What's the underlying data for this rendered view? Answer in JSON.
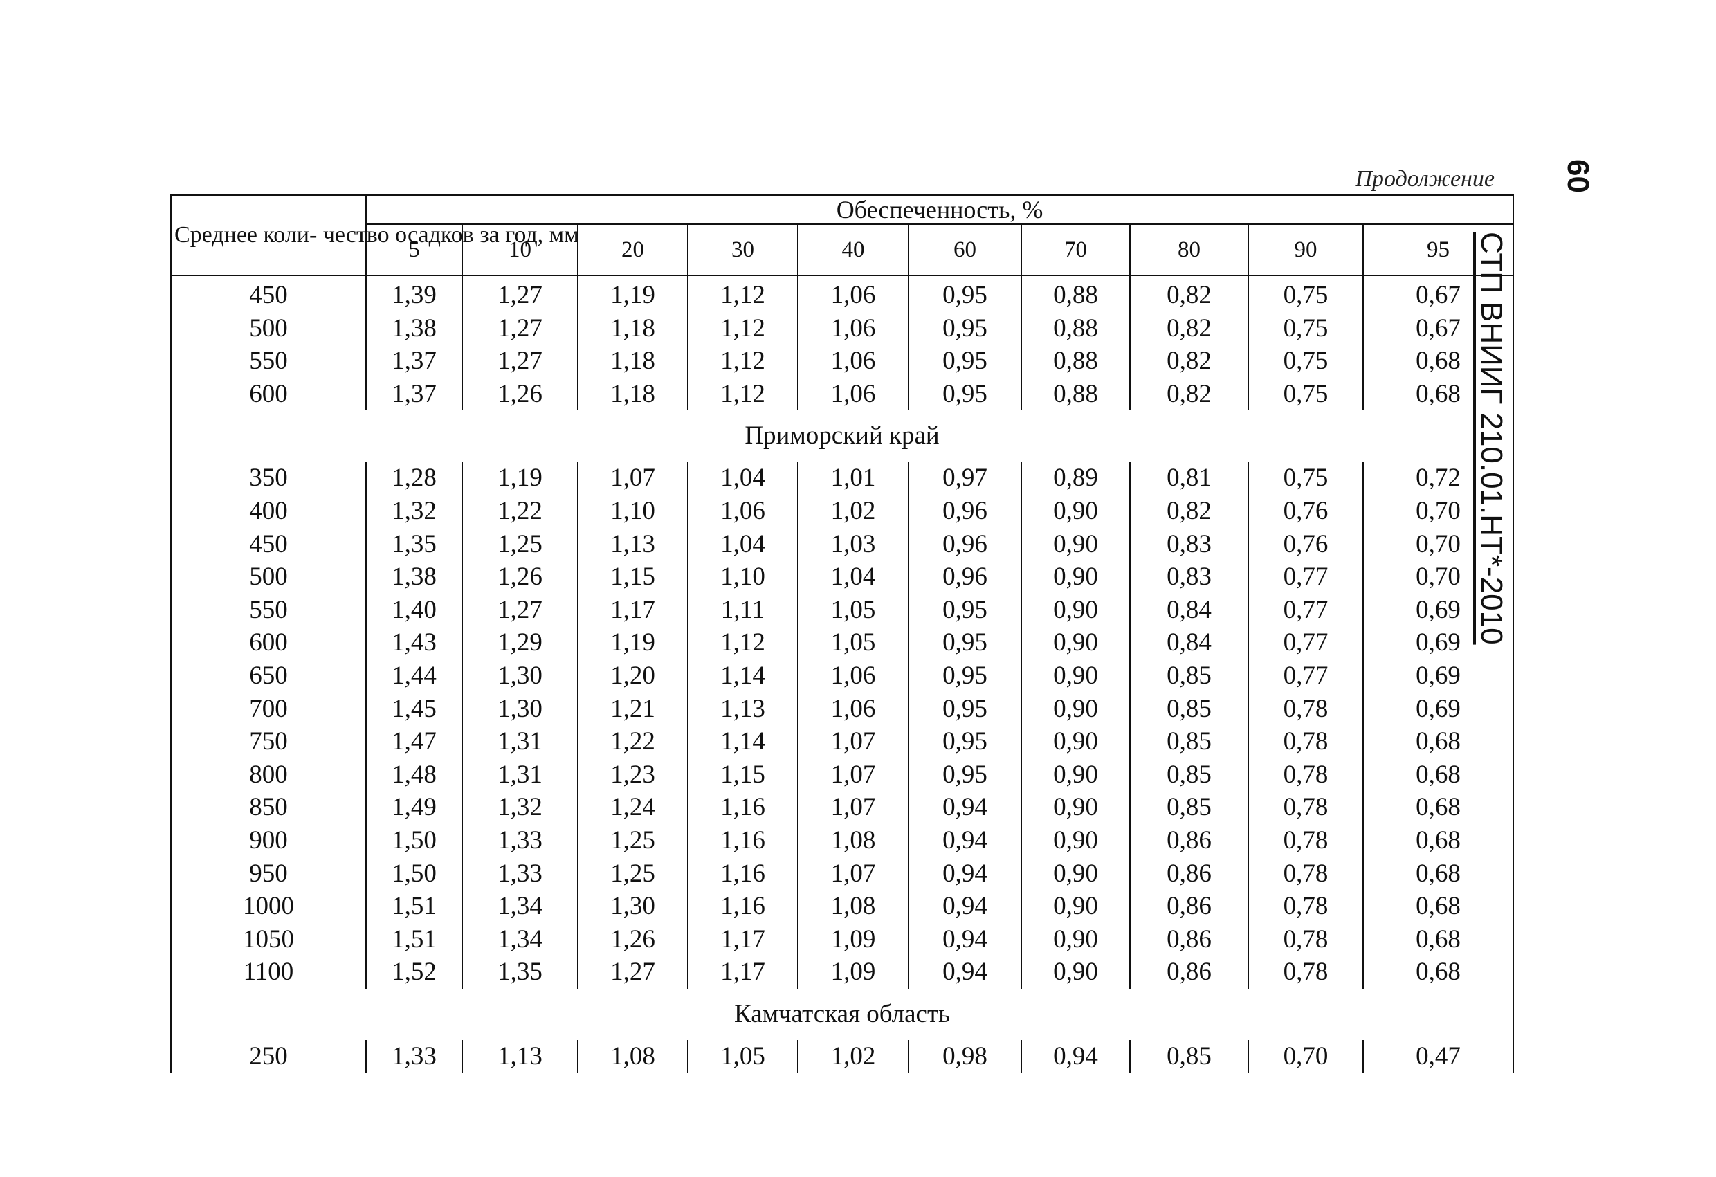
{
  "header": {
    "continuation": "Продолжение",
    "document_code": "СТП ВНИИГ 210.01.НТ*-2010",
    "page_number": "60"
  },
  "table": {
    "param_header": "Среднее коли- чество осадков за год, мм",
    "group_header": "Обеспеченность, %",
    "percent_columns": [
      "5",
      "10",
      "20",
      "30",
      "40",
      "60",
      "70",
      "80",
      "90",
      "95"
    ],
    "blocks": [
      {
        "section_title": "",
        "rows": [
          [
            "450",
            "1,39",
            "1,27",
            "1,19",
            "1,12",
            "1,06",
            "0,95",
            "0,88",
            "0,82",
            "0,75",
            "0,67"
          ],
          [
            "500",
            "1,38",
            "1,27",
            "1,18",
            "1,12",
            "1,06",
            "0,95",
            "0,88",
            "0,82",
            "0,75",
            "0,67"
          ],
          [
            "550",
            "1,37",
            "1,27",
            "1,18",
            "1,12",
            "1,06",
            "0,95",
            "0,88",
            "0,82",
            "0,75",
            "0,68"
          ],
          [
            "600",
            "1,37",
            "1,26",
            "1,18",
            "1,12",
            "1,06",
            "0,95",
            "0,88",
            "0,82",
            "0,75",
            "0,68"
          ]
        ]
      },
      {
        "section_title": "Приморский край",
        "rows": [
          [
            "350",
            "1,28",
            "1,19",
            "1,07",
            "1,04",
            "1,01",
            "0,97",
            "0,89",
            "0,81",
            "0,75",
            "0,72"
          ],
          [
            "400",
            "1,32",
            "1,22",
            "1,10",
            "1,06",
            "1,02",
            "0,96",
            "0,90",
            "0,82",
            "0,76",
            "0,70"
          ],
          [
            "450",
            "1,35",
            "1,25",
            "1,13",
            "1,04",
            "1,03",
            "0,96",
            "0,90",
            "0,83",
            "0,76",
            "0,70"
          ],
          [
            "500",
            "1,38",
            "1,26",
            "1,15",
            "1,10",
            "1,04",
            "0,96",
            "0,90",
            "0,83",
            "0,77",
            "0,70"
          ],
          [
            "550",
            "1,40",
            "1,27",
            "1,17",
            "1,11",
            "1,05",
            "0,95",
            "0,90",
            "0,84",
            "0,77",
            "0,69"
          ],
          [
            "600",
            "1,43",
            "1,29",
            "1,19",
            "1,12",
            "1,05",
            "0,95",
            "0,90",
            "0,84",
            "0,77",
            "0,69"
          ],
          [
            "650",
            "1,44",
            "1,30",
            "1,20",
            "1,14",
            "1,06",
            "0,95",
            "0,90",
            "0,85",
            "0,77",
            "0,69"
          ],
          [
            "700",
            "1,45",
            "1,30",
            "1,21",
            "1,13",
            "1,06",
            "0,95",
            "0,90",
            "0,85",
            "0,78",
            "0,69"
          ],
          [
            "750",
            "1,47",
            "1,31",
            "1,22",
            "1,14",
            "1,07",
            "0,95",
            "0,90",
            "0,85",
            "0,78",
            "0,68"
          ],
          [
            "800",
            "1,48",
            "1,31",
            "1,23",
            "1,15",
            "1,07",
            "0,95",
            "0,90",
            "0,85",
            "0,78",
            "0,68"
          ],
          [
            "850",
            "1,49",
            "1,32",
            "1,24",
            "1,16",
            "1,07",
            "0,94",
            "0,90",
            "0,85",
            "0,78",
            "0,68"
          ],
          [
            "900",
            "1,50",
            "1,33",
            "1,25",
            "1,16",
            "1,08",
            "0,94",
            "0,90",
            "0,86",
            "0,78",
            "0,68"
          ],
          [
            "950",
            "1,50",
            "1,33",
            "1,25",
            "1,16",
            "1,07",
            "0,94",
            "0,90",
            "0,86",
            "0,78",
            "0,68"
          ],
          [
            "1000",
            "1,51",
            "1,34",
            "1,30",
            "1,16",
            "1,08",
            "0,94",
            "0,90",
            "0,86",
            "0,78",
            "0,68"
          ],
          [
            "1050",
            "1,51",
            "1,34",
            "1,26",
            "1,17",
            "1,09",
            "0,94",
            "0,90",
            "0,86",
            "0,78",
            "0,68"
          ],
          [
            "1100",
            "1,52",
            "1,35",
            "1,27",
            "1,17",
            "1,09",
            "0,94",
            "0,90",
            "0,86",
            "0,78",
            "0,68"
          ]
        ]
      },
      {
        "section_title": "Камчатская область",
        "rows": [
          [
            "250",
            "1,33",
            "1,13",
            "1,08",
            "1,05",
            "1,02",
            "0,98",
            "0,94",
            "0,85",
            "0,70",
            "0,47"
          ]
        ]
      }
    ]
  }
}
